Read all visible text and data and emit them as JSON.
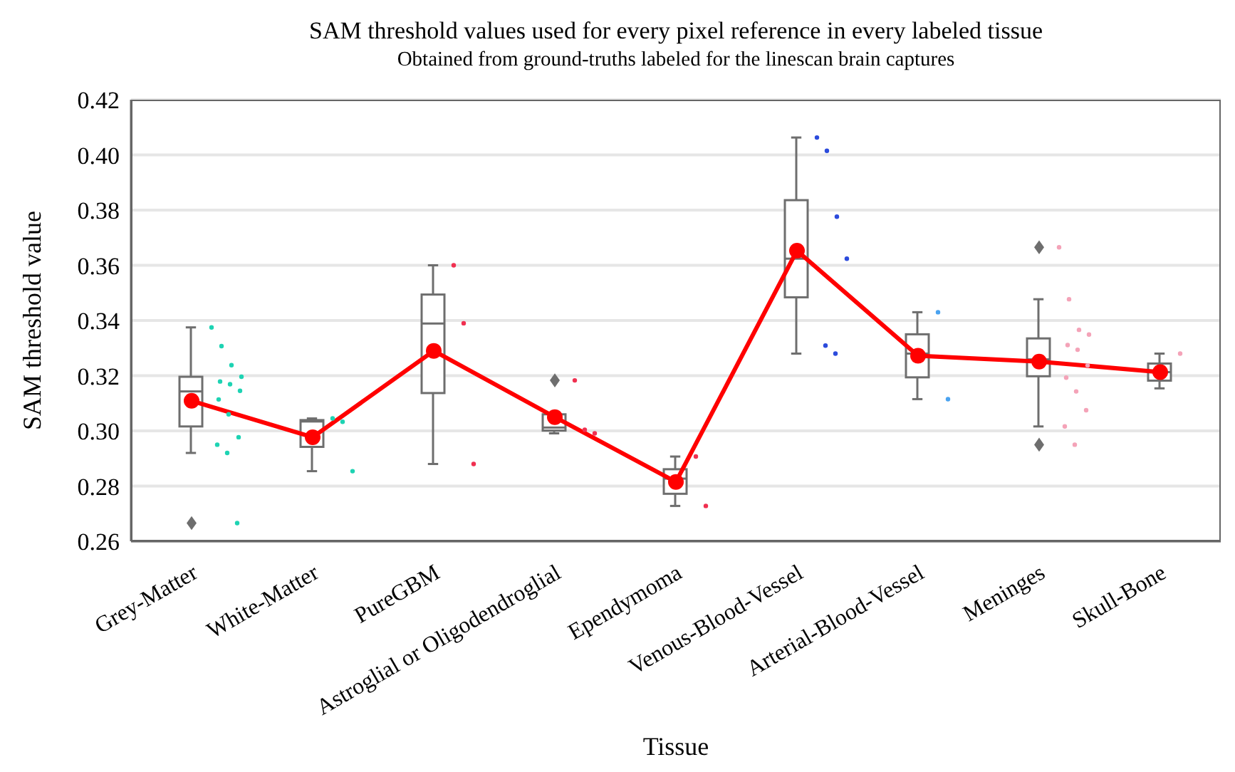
{
  "chart_data": {
    "type": "box",
    "title": "SAM threshold values used for every pixel reference in every labeled tissue",
    "subtitle": "Obtained from ground-truths labeled for the linescan brain captures",
    "xlabel": "Tissue",
    "ylabel": "SAM threshold value",
    "categories": [
      "Grey-Matter",
      "White-Matter",
      "PureGBM",
      "Astroglial or Oligodendroglial",
      "Ependymoma",
      "Venous-Blood-Vessel",
      "Arterial-Blood-Vessel",
      "Meninges",
      "Skull-Bone"
    ],
    "ylim": [
      0.26,
      0.42
    ],
    "yticks": [
      0.26,
      0.28,
      {
        "value": 0.3,
        "label": "0.30"
      },
      0.32,
      0.34,
      0.36,
      0.38,
      {
        "value": 0.4,
        "label": "0.40"
      },
      0.42
    ],
    "grid": "y",
    "legend": false,
    "series": [
      {
        "color": "#6e6e6e",
        "boxes": [
          {
            "low": 0.292,
            "q1": 0.3016,
            "median": 0.3143,
            "q3": 0.3196,
            "high": 0.3375,
            "outliers": [
              0.2666
            ]
          },
          {
            "low": 0.2854,
            "q1": 0.2942,
            "median": 0.3034,
            "q3": 0.3039,
            "high": 0.3045
          },
          {
            "low": 0.288,
            "q1": 0.3137,
            "median": 0.3389,
            "q3": 0.3494,
            "high": 0.36
          },
          {
            "low": 0.2991,
            "q1": 0.3001,
            "median": 0.3012,
            "q3": 0.306,
            "high": 0.306,
            "outliers": [
              0.3183
            ]
          },
          {
            "low": 0.2728,
            "q1": 0.2772,
            "median": 0.2827,
            "q3": 0.2861,
            "high": 0.2907
          },
          {
            "low": 0.328,
            "q1": 0.3484,
            "median": 0.3624,
            "q3": 0.3836,
            "high": 0.4063
          },
          {
            "low": 0.3115,
            "q1": 0.3194,
            "median": 0.328,
            "q3": 0.335,
            "high": 0.343
          },
          {
            "low": 0.3016,
            "q1": 0.3198,
            "median": 0.3259,
            "q3": 0.3335,
            "high": 0.3477,
            "outliers": [
              0.3665,
              0.295
            ]
          },
          {
            "low": 0.3154,
            "q1": 0.3182,
            "median": 0.3213,
            "q3": 0.3244,
            "high": 0.328
          }
        ]
      },
      {
        "type": "line",
        "color": "#ff0000",
        "marker": "circle",
        "line_style": "solid",
        "values": [
          0.3109,
          0.2977,
          0.329,
          0.305,
          0.2815,
          0.3653,
          0.3272,
          0.3251,
          0.3213
        ]
      },
      {
        "type": "scatter",
        "marker": "circle",
        "x": [
          "Grey-Matter",
          "Grey-Matter",
          "Grey-Matter",
          "Grey-Matter",
          "Grey-Matter",
          "Grey-Matter",
          "Grey-Matter",
          "Grey-Matter",
          "Grey-Matter",
          "Grey-Matter",
          "Grey-Matter",
          "Grey-Matter",
          "Grey-Matter",
          "White-Matter",
          "White-Matter",
          "White-Matter",
          "PureGBM",
          "PureGBM",
          "PureGBM",
          "Astroglial or Oligodendroglial",
          "Astroglial or Oligodendroglial",
          "Astroglial or Oligodendroglial",
          "Ependymoma",
          "Ependymoma",
          "Venous-Blood-Vessel",
          "Venous-Blood-Vessel",
          "Venous-Blood-Vessel",
          "Venous-Blood-Vessel",
          "Venous-Blood-Vessel",
          "Venous-Blood-Vessel",
          "Arterial-Blood-Vessel",
          "Arterial-Blood-Vessel",
          "Meninges",
          "Meninges",
          "Meninges",
          "Meninges",
          "Meninges",
          "Meninges",
          "Meninges",
          "Meninges",
          "Meninges",
          "Meninges",
          "Meninges",
          "Meninges",
          "Skull-Bone"
        ],
        "values": [
          0.3375,
          0.3307,
          0.3238,
          0.3196,
          0.3179,
          0.3169,
          0.3145,
          0.3114,
          0.306,
          0.2977,
          0.295,
          0.292,
          0.2666,
          0.3045,
          0.3033,
          0.2854,
          0.36,
          0.339,
          0.288,
          0.3183,
          0.3004,
          0.2991,
          0.2907,
          0.2728,
          0.4063,
          0.4015,
          0.3776,
          0.3624,
          0.3309,
          0.328,
          0.343,
          0.3115,
          0.3665,
          0.3477,
          0.3366,
          0.3349,
          0.3311,
          0.3294,
          0.3237,
          0.3193,
          0.3143,
          0.3075,
          0.3016,
          0.295,
          0.328
        ],
        "colors": [
          "#1ed3b3",
          "#1ed3b3",
          "#1ed3b3",
          "#1ed3b3",
          "#1ed3b3",
          "#1ed3b3",
          "#1ed3b3",
          "#1ed3b3",
          "#1ed3b3",
          "#1ed3b3",
          "#1ed3b3",
          "#1ed3b3",
          "#1ed3b3",
          "#1ed3b3",
          "#1ed3b3",
          "#1ed3b3",
          "#f03050",
          "#f03050",
          "#f03050",
          "#f03050",
          "#f03050",
          "#f03050",
          "#f03050",
          "#f03050",
          "#2c4bdc",
          "#2c4bdc",
          "#2c4bdc",
          "#2c4bdc",
          "#2c4bdc",
          "#2c4bdc",
          "#4aa3f0",
          "#4aa3f0",
          "#f4a3b8",
          "#f4a3b8",
          "#f4a3b8",
          "#f4a3b8",
          "#f4a3b8",
          "#f4a3b8",
          "#f4a3b8",
          "#f4a3b8",
          "#f4a3b8",
          "#f4a3b8",
          "#f4a3b8",
          "#f4a3b8",
          "#f4a3b8"
        ]
      }
    ]
  }
}
